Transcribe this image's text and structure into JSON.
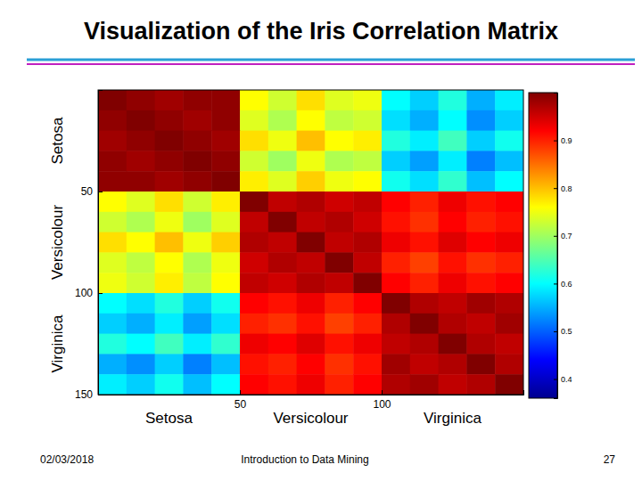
{
  "chart_data": {
    "type": "heatmap",
    "title": "Visualization of the Iris Correlation Matrix",
    "x_bins": [
      0,
      10,
      20,
      30,
      40,
      50,
      60,
      70,
      80,
      90,
      100,
      110,
      120,
      130,
      140,
      150
    ],
    "y_bins": [
      0,
      10,
      20,
      30,
      40,
      50,
      60,
      70,
      80,
      90,
      100,
      110,
      120,
      130,
      140,
      150
    ],
    "xlim": [
      0,
      150
    ],
    "ylim": [
      0,
      150
    ],
    "xticks": [
      50,
      100
    ],
    "yticks": [
      50,
      100,
      150
    ],
    "group_labels": [
      "Setosa",
      "Versicolour",
      "Virginica"
    ],
    "cells": [
      [
        1.0,
        0.99,
        0.98,
        0.99,
        0.99,
        0.76,
        0.73,
        0.78,
        0.74,
        0.75,
        0.6,
        0.57,
        0.62,
        0.55,
        0.59
      ],
      [
        0.99,
        1.0,
        0.99,
        0.98,
        0.99,
        0.74,
        0.71,
        0.76,
        0.72,
        0.73,
        0.58,
        0.55,
        0.6,
        0.53,
        0.57
      ],
      [
        0.98,
        0.99,
        1.0,
        0.99,
        0.98,
        0.78,
        0.75,
        0.8,
        0.76,
        0.77,
        0.62,
        0.59,
        0.64,
        0.57,
        0.61
      ],
      [
        0.99,
        0.98,
        0.99,
        1.0,
        0.99,
        0.73,
        0.7,
        0.75,
        0.71,
        0.72,
        0.57,
        0.54,
        0.59,
        0.52,
        0.56
      ],
      [
        0.99,
        0.99,
        0.98,
        0.99,
        1.0,
        0.77,
        0.74,
        0.79,
        0.75,
        0.76,
        0.61,
        0.58,
        0.63,
        0.56,
        0.6
      ],
      [
        0.76,
        0.74,
        0.78,
        0.73,
        0.77,
        1.0,
        0.96,
        0.97,
        0.95,
        0.96,
        0.92,
        0.9,
        0.93,
        0.91,
        0.92
      ],
      [
        0.73,
        0.71,
        0.75,
        0.7,
        0.74,
        0.96,
        1.0,
        0.96,
        0.97,
        0.95,
        0.91,
        0.89,
        0.92,
        0.9,
        0.91
      ],
      [
        0.78,
        0.76,
        0.8,
        0.75,
        0.79,
        0.97,
        0.96,
        1.0,
        0.96,
        0.97,
        0.93,
        0.91,
        0.94,
        0.92,
        0.93
      ],
      [
        0.74,
        0.72,
        0.76,
        0.71,
        0.75,
        0.95,
        0.97,
        0.96,
        1.0,
        0.96,
        0.9,
        0.88,
        0.91,
        0.89,
        0.9
      ],
      [
        0.75,
        0.73,
        0.77,
        0.72,
        0.76,
        0.96,
        0.95,
        0.97,
        0.96,
        1.0,
        0.92,
        0.9,
        0.93,
        0.91,
        0.92
      ],
      [
        0.6,
        0.58,
        0.62,
        0.57,
        0.61,
        0.92,
        0.91,
        0.93,
        0.9,
        0.92,
        1.0,
        0.97,
        0.96,
        0.98,
        0.97
      ],
      [
        0.57,
        0.55,
        0.59,
        0.54,
        0.58,
        0.9,
        0.89,
        0.91,
        0.88,
        0.9,
        0.97,
        1.0,
        0.97,
        0.96,
        0.98
      ],
      [
        0.62,
        0.6,
        0.64,
        0.59,
        0.63,
        0.93,
        0.92,
        0.94,
        0.91,
        0.93,
        0.96,
        0.97,
        1.0,
        0.97,
        0.96
      ],
      [
        0.55,
        0.53,
        0.57,
        0.52,
        0.56,
        0.91,
        0.9,
        0.92,
        0.89,
        0.91,
        0.98,
        0.96,
        0.97,
        1.0,
        0.97
      ],
      [
        0.59,
        0.57,
        0.61,
        0.56,
        0.6,
        0.92,
        0.91,
        0.93,
        0.9,
        0.92,
        0.97,
        0.98,
        0.96,
        0.97,
        1.0
      ]
    ],
    "color_range": [
      0.36,
      1.0
    ],
    "color_ticks": [
      0.4,
      0.5,
      0.6,
      0.7,
      0.8,
      0.9
    ]
  },
  "slide": {
    "date": "02/03/2018",
    "footer": "Introduction to Data Mining",
    "page": "27"
  }
}
